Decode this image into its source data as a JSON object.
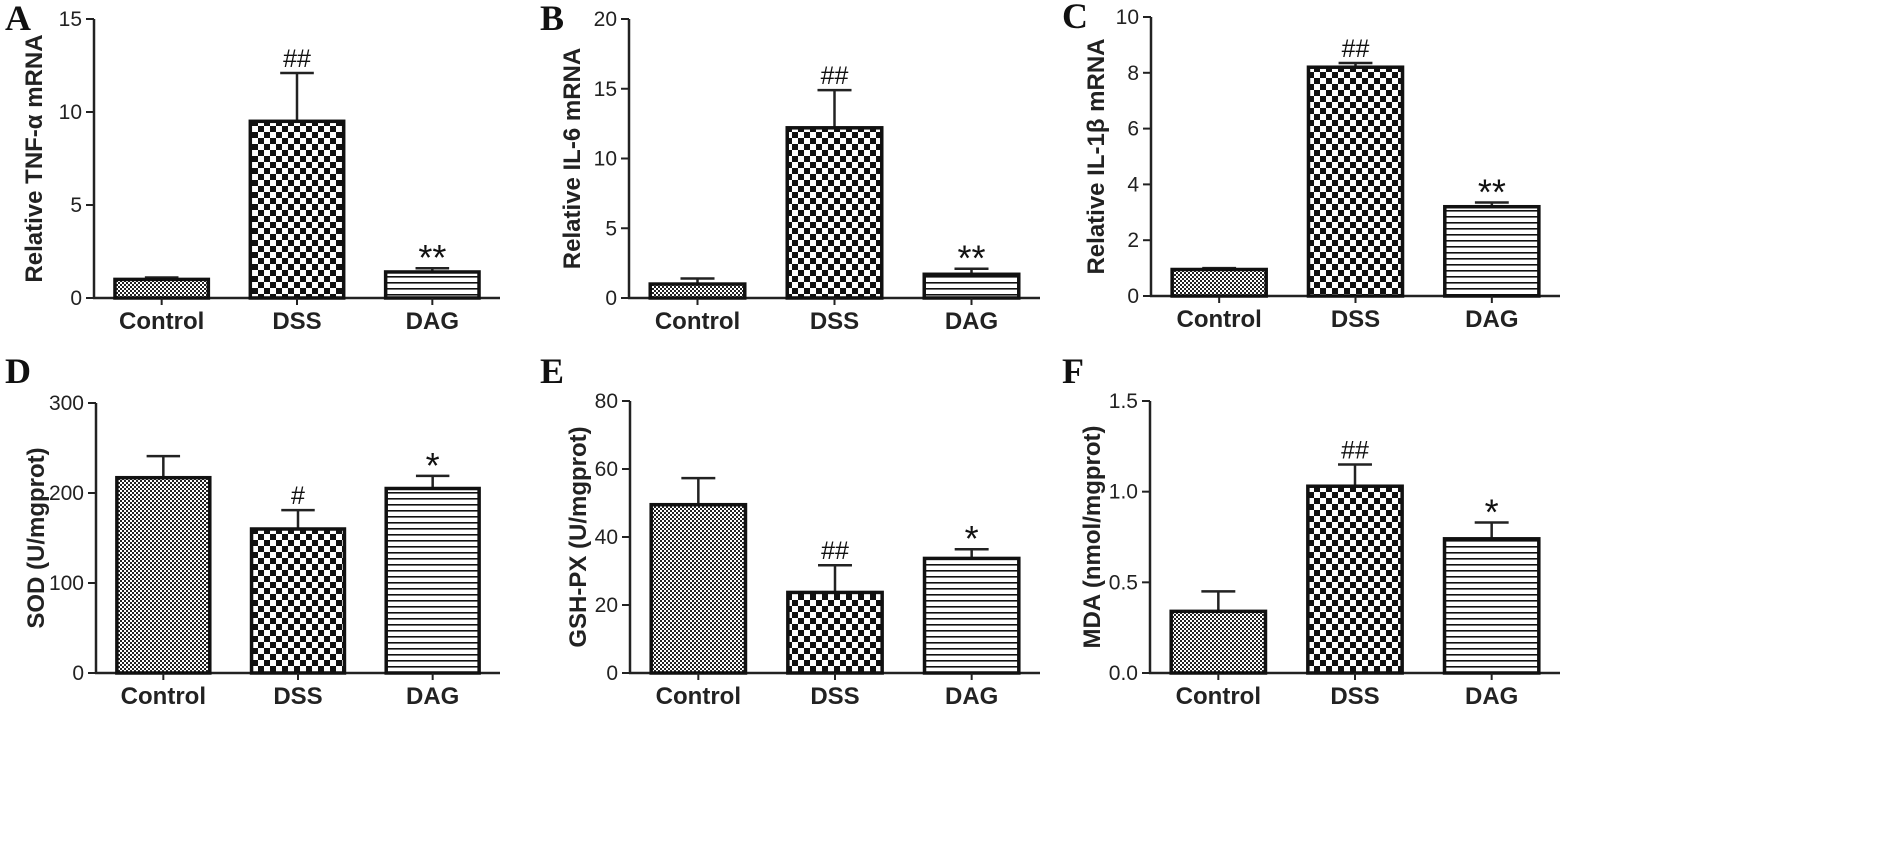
{
  "chart_data": [
    {
      "type": "bar",
      "panel": "A",
      "ylabel": "Relative TNF-α  mRNA",
      "categories": [
        "Control",
        "DSS",
        "DAG"
      ],
      "values": [
        1.0,
        9.5,
        1.4
      ],
      "errors": [
        0.1,
        2.6,
        0.2
      ],
      "significance": [
        "",
        "##",
        "**"
      ],
      "ylim": [
        0,
        15
      ],
      "yticks": [
        0,
        5,
        10,
        15
      ]
    },
    {
      "type": "bar",
      "panel": "B",
      "ylabel": "Relative IL-6 mRNA",
      "categories": [
        "Control",
        "DSS",
        "DAG"
      ],
      "values": [
        1.0,
        12.2,
        1.7
      ],
      "errors": [
        0.4,
        2.7,
        0.4
      ],
      "significance": [
        "",
        "##",
        "**"
      ],
      "ylim": [
        0,
        20
      ],
      "yticks": [
        0,
        5,
        10,
        15,
        20
      ]
    },
    {
      "type": "bar",
      "panel": "C",
      "ylabel": "Relative IL-1β  mRNA",
      "categories": [
        "Control",
        "DSS",
        "DAG"
      ],
      "values": [
        0.95,
        8.2,
        3.2
      ],
      "errors": [
        0.05,
        0.15,
        0.15
      ],
      "significance": [
        "",
        "##",
        "**"
      ],
      "ylim": [
        0,
        10
      ],
      "yticks": [
        0,
        2,
        4,
        6,
        8,
        10
      ]
    },
    {
      "type": "bar",
      "panel": "D",
      "ylabel": "SOD (U/mgprot)",
      "categories": [
        "Control",
        "DSS",
        "DAG"
      ],
      "values": [
        217,
        160,
        205
      ],
      "errors": [
        24,
        21,
        14
      ],
      "significance": [
        "",
        "#",
        "*"
      ],
      "ylim": [
        0,
        300
      ],
      "yticks": [
        0,
        100,
        200,
        300
      ]
    },
    {
      "type": "bar",
      "panel": "E",
      "ylabel": "GSH-PX (U/mgprot)",
      "categories": [
        "Control",
        "DSS",
        "DAG"
      ],
      "values": [
        49.5,
        23.7,
        33.7
      ],
      "errors": [
        7.8,
        8.0,
        2.7
      ],
      "significance": [
        "",
        "##",
        "*"
      ],
      "ylim": [
        0,
        80
      ],
      "yticks": [
        0,
        20,
        40,
        60,
        80
      ]
    },
    {
      "type": "bar",
      "panel": "F",
      "ylabel": "MDA (nmol/mgprot)",
      "categories": [
        "Control",
        "DSS",
        "DAG"
      ],
      "values": [
        0.34,
        1.03,
        0.74
      ],
      "errors": [
        0.11,
        0.12,
        0.09
      ],
      "significance": [
        "",
        "##",
        "*"
      ],
      "ylim": [
        0,
        1.5
      ],
      "yticks": [
        "0.0",
        "0.5",
        "1.0",
        "1.5"
      ]
    }
  ]
}
